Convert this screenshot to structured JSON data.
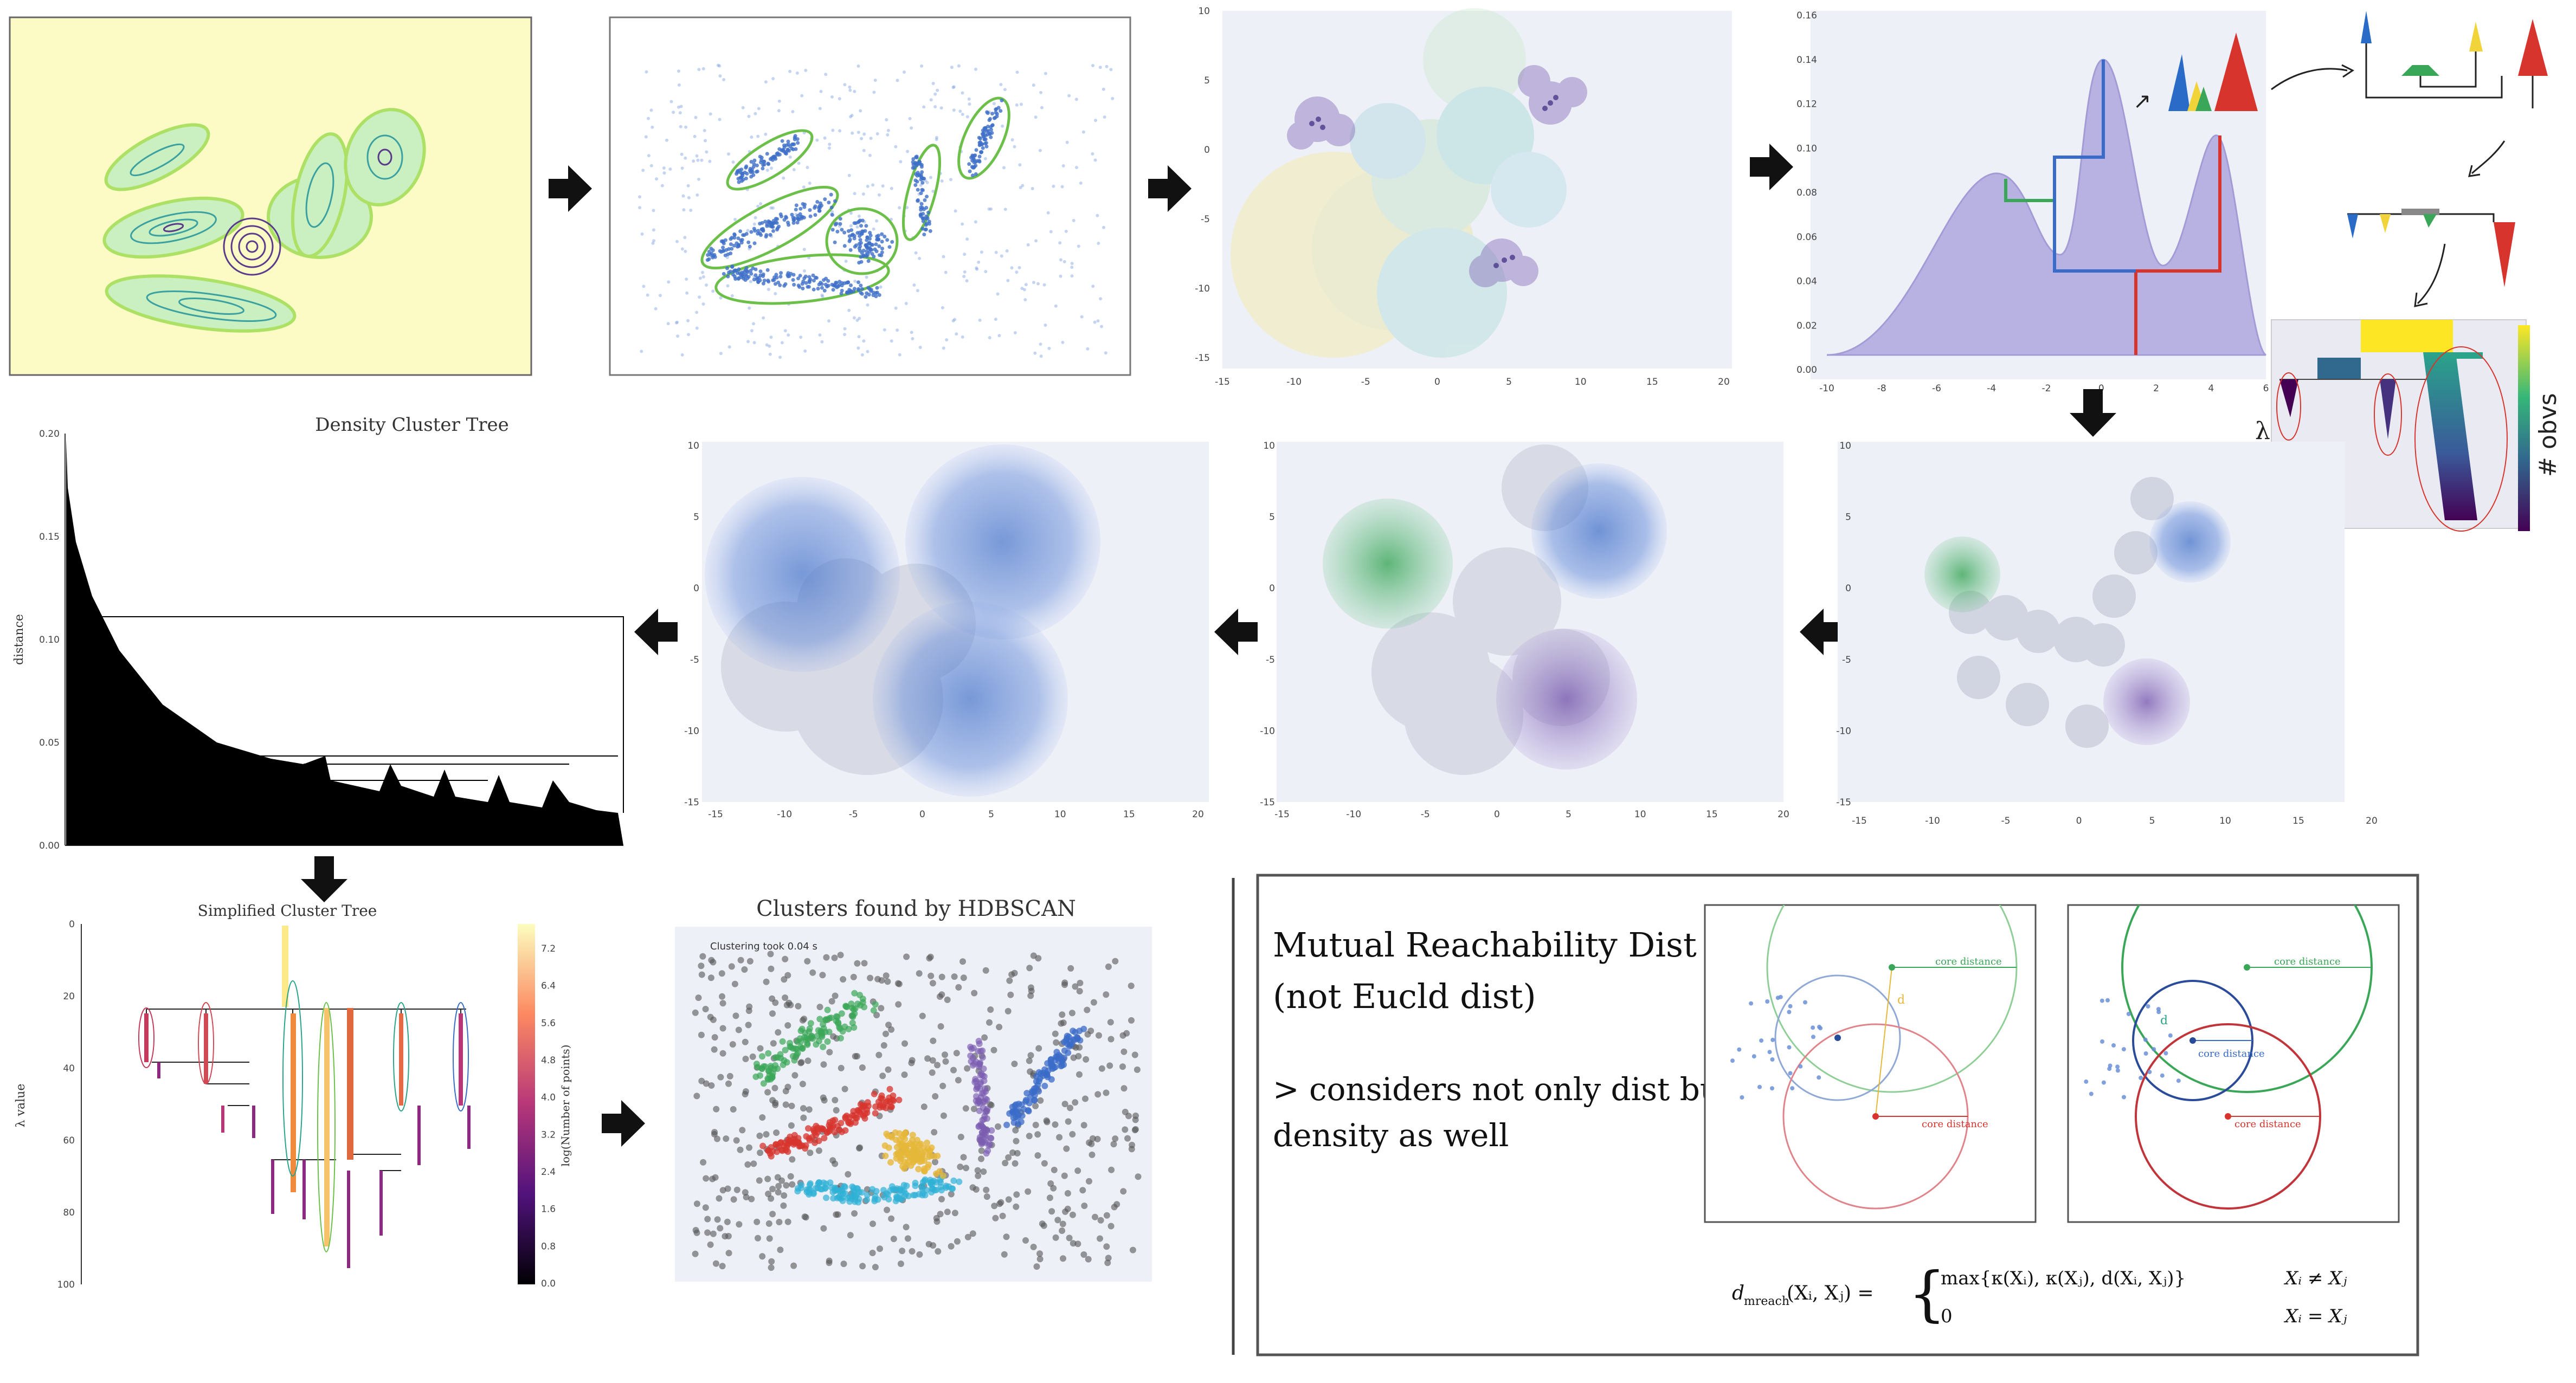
{
  "colors": {
    "contour_bg": "#fdfbc5",
    "panel_bg": "#eef0f8",
    "point_blue": "#3f6fc8",
    "arrow": "#111111",
    "green_cluster": "#3aa657",
    "purple_cluster": "#7b5cb0",
    "red_cluster": "#d7342e",
    "yellow_cluster": "#e6b83a",
    "cyan_cluster": "#2fb1d6",
    "density_fill": "#b8b2e2"
  },
  "icons": [
    "arrow-right-icon",
    "arrow-left-icon",
    "arrow-down-icon"
  ],
  "scatter_axis": {
    "x_ticks": [
      "-15",
      "-10",
      "-5",
      "0",
      "5",
      "10",
      "15",
      "20"
    ],
    "y_ticks": [
      "10",
      "5",
      "0",
      "-5",
      "-10",
      "-15"
    ]
  },
  "density_plot": {
    "x_ticks": [
      "-10",
      "-8",
      "-6",
      "-4",
      "-2",
      "0",
      "2",
      "4",
      "6"
    ],
    "y_ticks": [
      "0.16",
      "0.14",
      "0.12",
      "0.10",
      "0.08",
      "0.06",
      "0.04",
      "0.02",
      "0.00"
    ]
  },
  "condensed_tree": {
    "lambda_label": "λ",
    "obvs_label": "# obvs"
  },
  "density_tree": {
    "title": "Density Cluster Tree",
    "ylabel": "distance",
    "y_ticks": [
      "0.20",
      "0.15",
      "0.10",
      "0.05",
      "0.00"
    ]
  },
  "simplified_tree": {
    "title": "Simplified Cluster Tree",
    "ylabel": "λ value",
    "y_ticks": [
      "0",
      "20",
      "40",
      "60",
      "80",
      "100"
    ],
    "colorbar_label": "log(Number of points)",
    "colorbar_ticks": [
      "7.2",
      "6.4",
      "5.6",
      "4.8",
      "4.0",
      "3.2",
      "2.4",
      "1.6",
      "0.8",
      "0.0"
    ]
  },
  "hdbscan": {
    "title": "Clusters found by HDBSCAN",
    "note": "Clustering took 0.04 s"
  },
  "mutual_reach": {
    "heading_line1": "Mutual Reachability Dist",
    "heading_line2": "(not Eucld dist)",
    "bullet_line1": "> considers not only dist but",
    "bullet_line2": "density as well",
    "core_distance": "core distance",
    "d_label": "d",
    "formula_lhs": "d",
    "formula_sub": "mreach",
    "formula_args": "(Xᵢ, Xⱼ) =",
    "formula_case1": "max{κ(Xᵢ), κ(Xⱼ), d(Xᵢ, Xⱼ)}",
    "formula_cond1": "Xᵢ ≠ Xⱼ",
    "formula_case2": "0",
    "formula_cond2": "Xᵢ = Xⱼ"
  }
}
